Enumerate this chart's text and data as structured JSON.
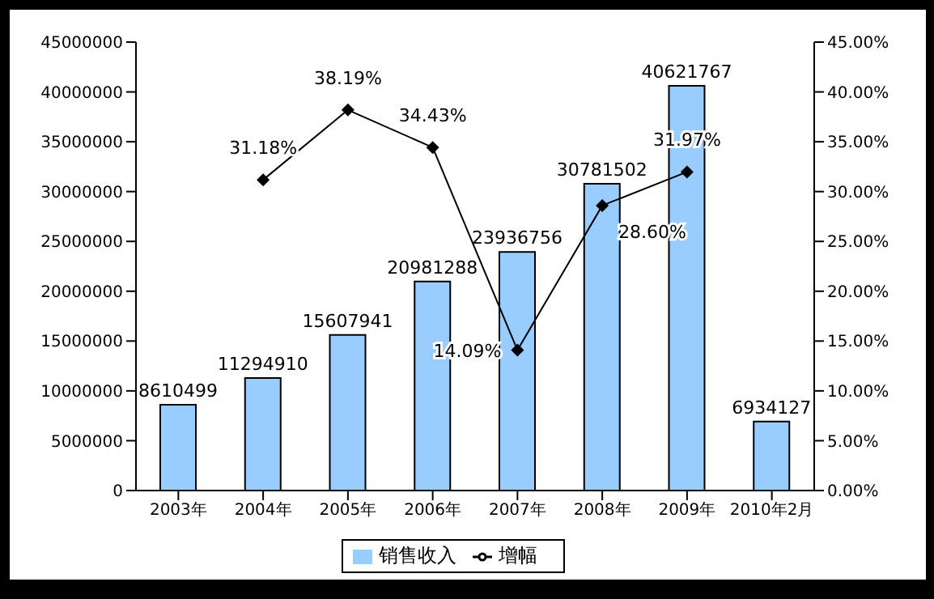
{
  "chart_data": {
    "type": "bar",
    "categories": [
      "2003年",
      "2004年",
      "2005年",
      "2006年",
      "2007年",
      "2008年",
      "2009年",
      "2010年2月"
    ],
    "series": [
      {
        "name": "销售收入",
        "color": "#99ccff",
        "values": [
          8610499,
          11294910,
          15607941,
          20981288,
          23936756,
          30781502,
          40621767,
          6934127
        ]
      },
      {
        "name": "增幅",
        "type": "line",
        "axis": "y2",
        "color": "#000000",
        "marker": "diamond",
        "values": [
          null,
          31.18,
          38.19,
          34.43,
          14.09,
          28.6,
          31.97,
          null
        ],
        "value_labels": [
          null,
          "31.18%",
          "38.19%",
          "34.43%",
          "14.09%",
          "28.60%",
          "31.97%",
          null
        ]
      }
    ],
    "data_labels": true,
    "ylim": [
      0,
      45000000
    ],
    "yticks": [
      0,
      5000000,
      10000000,
      15000000,
      20000000,
      25000000,
      30000000,
      35000000,
      40000000,
      45000000
    ],
    "y2lim": [
      0,
      45
    ],
    "y2ticks": [
      {
        "value": 0,
        "label": "0.00%"
      },
      {
        "value": 5,
        "label": "5.00%"
      },
      {
        "value": 10,
        "label": "10.00%"
      },
      {
        "value": 15,
        "label": "15.00%"
      },
      {
        "value": 20,
        "label": "20.00%"
      },
      {
        "value": 25,
        "label": "25.00%"
      },
      {
        "value": 30,
        "label": "30.00%"
      },
      {
        "value": 35,
        "label": "35.00%"
      },
      {
        "value": 40,
        "label": "40.00%"
      },
      {
        "value": 45,
        "label": "45.00%"
      }
    ],
    "grid": false,
    "legend": "bottom"
  }
}
